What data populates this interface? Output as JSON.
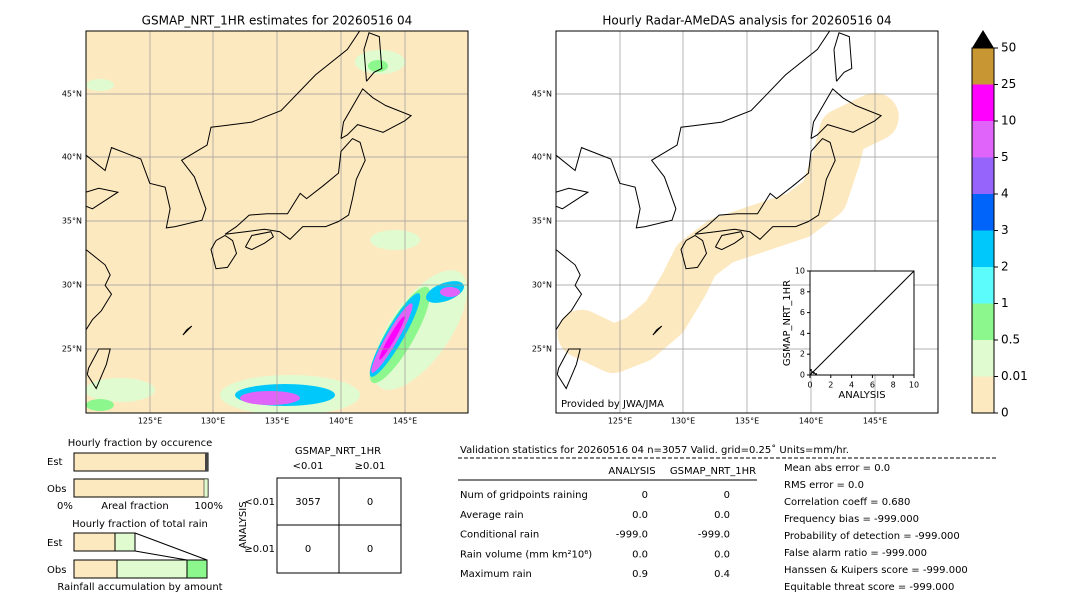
{
  "left_map": {
    "title": "GSMAP_NRT_1HR estimates for 20260516 04",
    "lat_labels": [
      "45°N",
      "40°N",
      "35°N",
      "30°N",
      "25°N"
    ],
    "lon_labels": [
      "125°E",
      "130°E",
      "135°E",
      "140°E",
      "145°E"
    ]
  },
  "right_map": {
    "title": "Hourly Radar-AMeDAS analysis for 20260516 04",
    "credit": "Provided by JWA/JMA",
    "lat_labels": [
      "45°N",
      "40°N",
      "35°N",
      "30°N",
      "25°N"
    ],
    "lon_labels": [
      "125°E",
      "130°E",
      "135°E",
      "140°E",
      "145°E"
    ]
  },
  "colorbar": {
    "labels": [
      "0",
      "0.01",
      "0.5",
      "1",
      "2",
      "3",
      "4",
      "5",
      "10",
      "25",
      "50"
    ],
    "colors": [
      "#fde9c0",
      "#e0fbd0",
      "#8cf78c",
      "#5cfcfc",
      "#00c8fa",
      "#0064fa",
      "#9664fa",
      "#e064fa",
      "#ff00ff",
      "#c89632"
    ]
  },
  "inset": {
    "xlabel": "ANALYSIS",
    "ylabel": "GSMAP_NRT_1HR",
    "ticks": [
      "0",
      "2",
      "4",
      "6",
      "8",
      "10"
    ]
  },
  "fraction_occurrence": {
    "title": "Hourly fraction by occurence",
    "rows": [
      "Est",
      "Obs"
    ],
    "axis": [
      "0%",
      "Areal fraction",
      "100%"
    ]
  },
  "fraction_amount": {
    "title": "Hourly fraction of total rain",
    "rows": [
      "Est",
      "Obs"
    ],
    "footer": "Rainfall accumulation by amount"
  },
  "contingency": {
    "title": "GSMAP_NRT_1HR",
    "columns": [
      "<0.01",
      "≥0.01"
    ],
    "rows": [
      "<0.01",
      "≥0.01"
    ],
    "row_axis": "ANALYSIS",
    "cells": [
      [
        "3057",
        "0"
      ],
      [
        "0",
        "0"
      ]
    ]
  },
  "stats": {
    "header": "Validation statistics for 20260516 04  n=3057 Valid. grid=0.25˚ Units=mm/hr.",
    "columns": [
      "ANALYSIS",
      "GSMAP_NRT_1HR"
    ],
    "rows": [
      [
        "Num of gridpoints raining",
        "0",
        "0"
      ],
      [
        "Average rain",
        "0.0",
        "0.0"
      ],
      [
        "Conditional rain",
        "-999.0",
        "-999.0"
      ],
      [
        "Rain volume (mm km²10⁶)",
        "0.0",
        "0.0"
      ],
      [
        "Maximum rain",
        "0.9",
        "0.4"
      ]
    ],
    "scores": [
      "Mean abs error =    0.0",
      "RMS error =    0.0",
      "Correlation coeff =  0.680",
      "Frequency bias = -999.000",
      "Probability of detection = -999.000",
      "False alarm ratio = -999.000",
      "Hanssen & Kuipers score = -999.000",
      "Equitable threat score = -999.000"
    ]
  }
}
